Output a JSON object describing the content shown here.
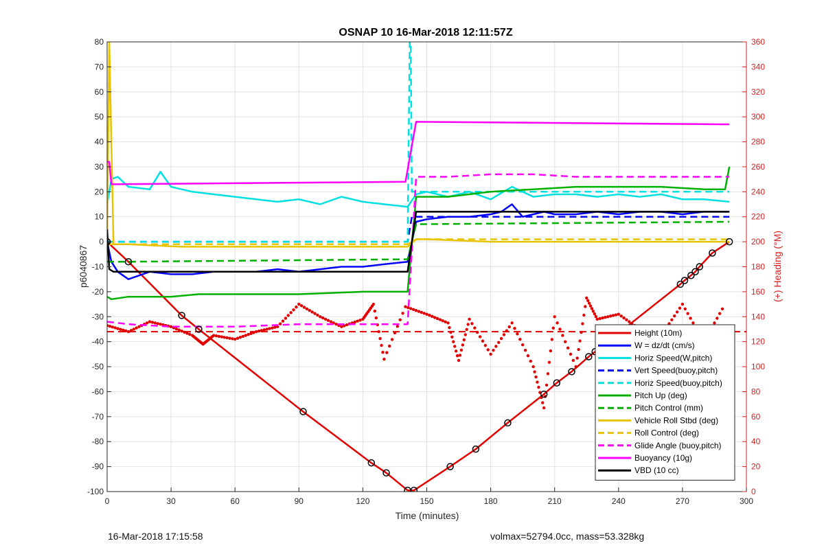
{
  "chart_data": {
    "type": "line",
    "title": "OSNAP 10 16-Mar-2018 12:11:57Z",
    "xlabel": "Time (minutes)",
    "ylabel": "p6040867",
    "y2label": "(+) Heading (°M)",
    "xlim": [
      0,
      300
    ],
    "ylim": [
      -100,
      80
    ],
    "y2lim": [
      0,
      360
    ],
    "x_ticks": [
      0,
      30,
      60,
      90,
      120,
      150,
      180,
      210,
      240,
      270,
      300
    ],
    "y_ticks": [
      -100,
      -90,
      -80,
      -70,
      -60,
      -50,
      -40,
      -30,
      -20,
      -10,
      0,
      10,
      20,
      30,
      40,
      50,
      60,
      70,
      80
    ],
    "y2_ticks": [
      0,
      20,
      40,
      60,
      80,
      100,
      120,
      140,
      160,
      180,
      200,
      220,
      240,
      260,
      280,
      300,
      320,
      340,
      360
    ],
    "grid": true,
    "legend_position": "bottom-right",
    "series": [
      {
        "name": "Height (10m)",
        "color": "#e00000",
        "style": "solid",
        "x": [
          0,
          10,
          35,
          43,
          92,
          124,
          131,
          141,
          144,
          161,
          173,
          188,
          205,
          211,
          218,
          226,
          229,
          269,
          271,
          274,
          276,
          278,
          284,
          292
        ],
        "y": [
          0,
          -8,
          -29.5,
          -35,
          -68,
          -88.5,
          -92.5,
          -99.5,
          -99.5,
          -90,
          -83,
          -72.5,
          -61,
          -56.5,
          -52,
          -46,
          -44,
          -17,
          -15.5,
          -13.5,
          -12,
          -10,
          -4.5,
          0
        ]
      },
      {
        "name": "W = dz/dt (cm/s)",
        "color": "#0000ff",
        "style": "solid",
        "x": [
          0,
          2,
          5,
          10,
          20,
          30,
          40,
          50,
          60,
          70,
          80,
          90,
          100,
          110,
          120,
          130,
          141,
          145,
          150,
          160,
          170,
          180,
          185,
          190,
          195,
          200,
          205,
          210,
          220,
          230,
          240,
          250,
          260,
          270,
          280,
          292
        ],
        "y": [
          0,
          -8,
          -12,
          -15,
          -12,
          -13,
          -13,
          -12,
          -12,
          -12,
          -11,
          -12,
          -11,
          -10,
          -10,
          -9,
          -8,
          8,
          9,
          10,
          10,
          11,
          12,
          15,
          10,
          11,
          12,
          11,
          11,
          12,
          11,
          12,
          12,
          11,
          12,
          12
        ]
      },
      {
        "name": "Horiz Speed(W,pitch)",
        "color": "#00e0e0",
        "style": "solid",
        "x": [
          0,
          2,
          5,
          10,
          20,
          25,
          30,
          40,
          50,
          60,
          70,
          80,
          90,
          100,
          110,
          120,
          130,
          141,
          145,
          150,
          160,
          170,
          180,
          190,
          200,
          210,
          220,
          230,
          240,
          250,
          260,
          270,
          280,
          292
        ],
        "y": [
          15,
          25,
          26,
          22,
          21,
          28,
          22,
          20,
          19,
          18,
          17,
          16,
          17,
          15,
          18,
          16,
          15,
          14,
          19,
          20,
          18,
          20,
          17,
          22,
          18,
          19,
          19,
          18,
          19,
          18,
          19,
          17,
          17,
          16
        ]
      },
      {
        "name": "Vert Speed(buoy,pitch)",
        "color": "#0000ff",
        "style": "dashed",
        "x": [
          0,
          141,
          143,
          292
        ],
        "y": [
          0,
          0,
          10,
          10
        ]
      },
      {
        "name": "Horiz Speed(buoy,pitch)",
        "color": "#00e0e0",
        "style": "dashed",
        "x": [
          0,
          141,
          142,
          142.5,
          143,
          145,
          292
        ],
        "y": [
          0,
          0,
          80,
          80,
          20,
          20,
          20
        ]
      },
      {
        "name": "Pitch Up (deg)",
        "color": "#00b000",
        "style": "solid",
        "x": [
          0,
          2,
          10,
          30,
          43,
          60,
          90,
          120,
          141,
          145,
          160,
          180,
          200,
          220,
          240,
          260,
          280,
          290,
          292
        ],
        "y": [
          -22,
          -23,
          -22,
          -22,
          -21,
          -21,
          -21,
          -20,
          -20,
          18,
          18,
          20,
          21,
          22,
          22,
          22,
          21,
          21,
          30
        ]
      },
      {
        "name": "Pitch Control (mm)",
        "color": "#00b000",
        "style": "dashed",
        "x": [
          0,
          10,
          141,
          145,
          292
        ],
        "y": [
          -8,
          -8,
          -7,
          7,
          8
        ]
      },
      {
        "name": "Vehicle Roll Stbd (deg)",
        "color": "#e8c400",
        "style": "solid",
        "x": [
          0,
          1,
          3,
          10,
          35,
          43,
          60,
          90,
          120,
          131,
          141,
          145,
          150,
          180,
          200,
          210,
          220,
          240,
          260,
          280,
          292
        ],
        "y": [
          0,
          80,
          -1,
          -1,
          -2,
          -2,
          -2,
          -2,
          -2,
          -2,
          -2,
          1,
          1,
          0,
          0,
          0,
          0,
          0,
          0,
          0,
          0
        ]
      },
      {
        "name": "Roll Control (deg)",
        "color": "#e8c400",
        "style": "dashed",
        "x": [
          0,
          141,
          145,
          292
        ],
        "y": [
          -1,
          -1,
          1,
          1
        ]
      },
      {
        "name": "Glide Angle (buoy,pitch)",
        "color": "#ff00ff",
        "style": "dashed",
        "x": [
          0,
          10,
          30,
          60,
          90,
          120,
          141,
          145,
          160,
          180,
          200,
          220,
          240,
          260,
          280,
          292
        ],
        "y": [
          -32,
          -33,
          -34,
          -34,
          -33,
          -33,
          -33,
          26,
          26,
          27,
          27,
          26,
          26,
          26,
          26,
          26
        ]
      },
      {
        "name": "Buoyancy (10g)",
        "color": "#ff00ff",
        "style": "solid",
        "x": [
          0,
          1,
          2,
          140,
          145,
          292
        ],
        "y": [
          32,
          32,
          23,
          24,
          48,
          47
        ]
      },
      {
        "name": "VBD (10 cc)",
        "color": "#000000",
        "style": "solid",
        "x": [
          0,
          1,
          3,
          141,
          145,
          292
        ],
        "y": [
          5,
          -11,
          -12,
          -12,
          12,
          12
        ]
      }
    ],
    "heading": {
      "color": "#e00000",
      "axis": "right",
      "target": 128,
      "x": [
        0,
        10,
        20,
        30,
        40,
        45,
        50,
        60,
        70,
        80,
        90,
        100,
        110,
        120,
        125,
        130,
        140,
        150,
        160,
        165,
        170,
        180,
        190,
        200,
        205,
        210,
        220,
        225,
        230,
        240,
        250,
        260,
        270,
        280,
        290
      ],
      "y": [
        133,
        128,
        136,
        132,
        125,
        118,
        125,
        122,
        128,
        132,
        150,
        140,
        132,
        138,
        150,
        106,
        148,
        142,
        135,
        105,
        138,
        110,
        135,
        100,
        67,
        140,
        100,
        155,
        138,
        142,
        130,
        125,
        150,
        120,
        150
      ]
    }
  },
  "footer": {
    "left": "16-Mar-2018 17:15:58",
    "right": "volmax=52794.0cc, mass=53.328kg"
  }
}
